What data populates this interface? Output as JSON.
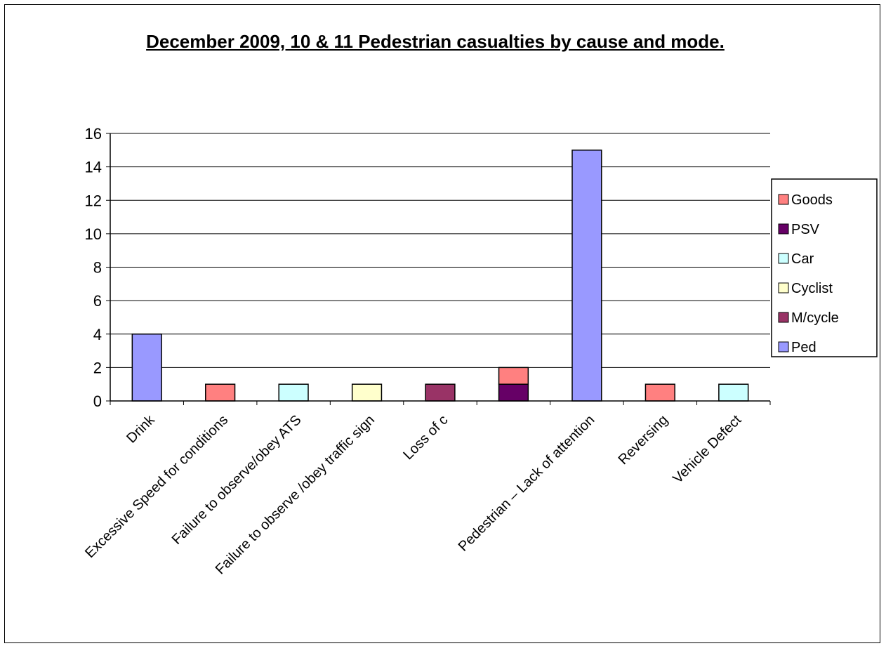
{
  "chart_data": {
    "type": "bar",
    "stacked": true,
    "title": "December 2009, 10 & 11 Pedestrian casualties by cause and mode.",
    "xlabel": "",
    "ylabel": "",
    "ylim": [
      0,
      16
    ],
    "yticks": [
      0,
      2,
      4,
      6,
      8,
      10,
      12,
      14,
      16
    ],
    "grid": true,
    "legend_position": "right",
    "categories": [
      "Drink",
      "Excessive Speed for conditions",
      "Failure to observe/obey ATS",
      "Failure to observe /obey traffic sign",
      "Loss of c",
      "",
      "Pedestrian – Lack of attention",
      "Reversing",
      "Vehicle Defect"
    ],
    "series": [
      {
        "name": "PSV",
        "color": "#660066",
        "values": [
          0,
          0,
          0,
          0,
          0,
          1,
          0,
          0,
          0
        ]
      },
      {
        "name": "Goods",
        "color": "#ff8080",
        "values": [
          0,
          1,
          0,
          0,
          0,
          1,
          0,
          1,
          0
        ]
      },
      {
        "name": "Car",
        "color": "#ccffff",
        "values": [
          0,
          0,
          1,
          0,
          0,
          0,
          0,
          0,
          1
        ]
      },
      {
        "name": "Cyclist",
        "color": "#ffffcc",
        "values": [
          0,
          0,
          0,
          1,
          0,
          0,
          0,
          0,
          0
        ]
      },
      {
        "name": "M/cycle",
        "color": "#993366",
        "values": [
          0,
          0,
          0,
          0,
          1,
          0,
          0,
          0,
          0
        ]
      },
      {
        "name": "Ped",
        "color": "#9999ff",
        "values": [
          4,
          0,
          0,
          0,
          0,
          0,
          15,
          0,
          0
        ]
      }
    ],
    "legend_order": [
      "Goods",
      "PSV",
      "Car",
      "Cyclist",
      "M/cycle",
      "Ped"
    ]
  }
}
